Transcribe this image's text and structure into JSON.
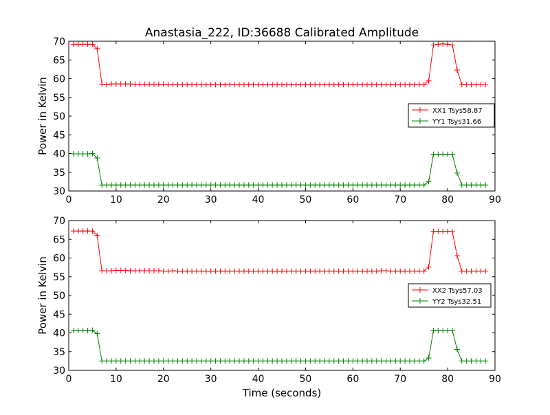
{
  "chart_data": {
    "type": "line",
    "title": "Anastasia_222, ID:36688 Calibrated Amplitude",
    "xlabel": "Time (seconds)",
    "colors": {
      "red": "#ff0000",
      "green": "#008000"
    },
    "panels": [
      {
        "ylabel": "Power in Kelvin",
        "xlim": [
          0,
          90
        ],
        "ylim": [
          30,
          70
        ],
        "xticks": [
          "0",
          "10",
          "20",
          "30",
          "40",
          "50",
          "60",
          "70",
          "80",
          "90"
        ],
        "yticks": [
          "30",
          "35",
          "40",
          "45",
          "50",
          "55",
          "60",
          "65",
          "70"
        ],
        "legend_position": "center-right",
        "series": [
          {
            "name": "XX1 Tsys58.87",
            "color": "#ff0000",
            "x": [
              1,
              2,
              3,
              4,
              5,
              6,
              7,
              8,
              9,
              10,
              11,
              12,
              13,
              14,
              15,
              16,
              17,
              18,
              19,
              20,
              21,
              22,
              23,
              24,
              25,
              26,
              27,
              28,
              29,
              30,
              31,
              32,
              33,
              34,
              35,
              36,
              37,
              38,
              39,
              40,
              41,
              42,
              43,
              44,
              45,
              46,
              47,
              48,
              49,
              50,
              51,
              52,
              53,
              54,
              55,
              56,
              57,
              58,
              59,
              60,
              61,
              62,
              63,
              64,
              65,
              66,
              67,
              68,
              69,
              70,
              71,
              72,
              73,
              74,
              75,
              76,
              77,
              78,
              79,
              80,
              81,
              82,
              83,
              84,
              85,
              86,
              87,
              88
            ],
            "y": [
              69.2,
              69.2,
              69.2,
              69.2,
              69.2,
              68,
              58.5,
              58.4,
              58.6,
              58.6,
              58.6,
              58.6,
              58.6,
              58.5,
              58.5,
              58.5,
              58.5,
              58.5,
              58.5,
              58.5,
              58.4,
              58.4,
              58.4,
              58.4,
              58.4,
              58.4,
              58.4,
              58.4,
              58.4,
              58.4,
              58.4,
              58.4,
              58.4,
              58.4,
              58.4,
              58.4,
              58.4,
              58.4,
              58.4,
              58.4,
              58.4,
              58.4,
              58.4,
              58.4,
              58.4,
              58.4,
              58.4,
              58.4,
              58.4,
              58.4,
              58.4,
              58.4,
              58.4,
              58.4,
              58.4,
              58.4,
              58.4,
              58.4,
              58.4,
              58.4,
              58.4,
              58.4,
              58.4,
              58.4,
              58.4,
              58.4,
              58.4,
              58.4,
              58.4,
              58.4,
              58.4,
              58.4,
              58.4,
              58.4,
              58.4,
              59.4,
              69,
              69.2,
              69.3,
              69.2,
              69,
              62.3,
              58.4,
              58.4,
              58.4,
              58.4,
              58.4,
              58.4
            ]
          },
          {
            "name": "YY1 Tsys31.66",
            "color": "#008000",
            "x": [
              1,
              2,
              3,
              4,
              5,
              6,
              7,
              8,
              9,
              10,
              11,
              12,
              13,
              14,
              15,
              16,
              17,
              18,
              19,
              20,
              21,
              22,
              23,
              24,
              25,
              26,
              27,
              28,
              29,
              30,
              31,
              32,
              33,
              34,
              35,
              36,
              37,
              38,
              39,
              40,
              41,
              42,
              43,
              44,
              45,
              46,
              47,
              48,
              49,
              50,
              51,
              52,
              53,
              54,
              55,
              56,
              57,
              58,
              59,
              60,
              61,
              62,
              63,
              64,
              65,
              66,
              67,
              68,
              69,
              70,
              71,
              72,
              73,
              74,
              75,
              76,
              77,
              78,
              79,
              80,
              81,
              82,
              83,
              84,
              85,
              86,
              87,
              88
            ],
            "y": [
              39.9,
              39.9,
              39.9,
              39.9,
              40,
              38.8,
              31.6,
              31.6,
              31.6,
              31.6,
              31.6,
              31.6,
              31.6,
              31.6,
              31.6,
              31.6,
              31.6,
              31.6,
              31.6,
              31.6,
              31.6,
              31.6,
              31.6,
              31.6,
              31.6,
              31.6,
              31.6,
              31.6,
              31.6,
              31.6,
              31.6,
              31.6,
              31.6,
              31.6,
              31.6,
              31.6,
              31.6,
              31.6,
              31.6,
              31.6,
              31.6,
              31.6,
              31.6,
              31.6,
              31.6,
              31.6,
              31.6,
              31.6,
              31.6,
              31.6,
              31.6,
              31.6,
              31.6,
              31.6,
              31.6,
              31.6,
              31.6,
              31.6,
              31.6,
              31.6,
              31.6,
              31.6,
              31.6,
              31.6,
              31.6,
              31.6,
              31.6,
              31.6,
              31.6,
              31.6,
              31.6,
              31.6,
              31.6,
              31.6,
              31.6,
              32.5,
              39.8,
              39.8,
              39.8,
              39.8,
              39.8,
              34.8,
              31.6,
              31.6,
              31.6,
              31.6,
              31.6,
              31.6
            ]
          }
        ]
      },
      {
        "ylabel": "Power in Kelvin",
        "xlabel": "Time (seconds)",
        "xlim": [
          0,
          90
        ],
        "ylim": [
          30,
          70
        ],
        "xticks": [
          "0",
          "10",
          "20",
          "30",
          "40",
          "50",
          "60",
          "70",
          "80",
          "90"
        ],
        "yticks": [
          "30",
          "35",
          "40",
          "45",
          "50",
          "55",
          "60",
          "65",
          "70"
        ],
        "legend_position": "center-right",
        "series": [
          {
            "name": "XX2 Tsys57.03",
            "color": "#ff0000",
            "x": [
              1,
              2,
              3,
              4,
              5,
              6,
              7,
              8,
              9,
              10,
              11,
              12,
              13,
              14,
              15,
              16,
              17,
              18,
              19,
              20,
              21,
              22,
              23,
              24,
              25,
              26,
              27,
              28,
              29,
              30,
              31,
              32,
              33,
              34,
              35,
              36,
              37,
              38,
              39,
              40,
              41,
              42,
              43,
              44,
              45,
              46,
              47,
              48,
              49,
              50,
              51,
              52,
              53,
              54,
              55,
              56,
              57,
              58,
              59,
              60,
              61,
              62,
              63,
              64,
              65,
              66,
              67,
              68,
              69,
              70,
              71,
              72,
              73,
              74,
              75,
              76,
              77,
              78,
              79,
              80,
              81,
              82,
              83,
              84,
              85,
              86,
              87,
              88
            ],
            "y": [
              67.2,
              67.2,
              67.2,
              67.2,
              67.2,
              66,
              56.6,
              56.6,
              56.6,
              56.7,
              56.7,
              56.7,
              56.6,
              56.6,
              56.6,
              56.6,
              56.6,
              56.6,
              56.6,
              56.5,
              56.5,
              56.6,
              56.5,
              56.5,
              56.5,
              56.5,
              56.5,
              56.5,
              56.5,
              56.5,
              56.5,
              56.5,
              56.5,
              56.5,
              56.5,
              56.5,
              56.5,
              56.5,
              56.5,
              56.5,
              56.5,
              56.5,
              56.5,
              56.5,
              56.5,
              56.5,
              56.5,
              56.5,
              56.5,
              56.5,
              56.5,
              56.5,
              56.5,
              56.5,
              56.5,
              56.5,
              56.5,
              56.5,
              56.5,
              56.5,
              56.5,
              56.5,
              56.5,
              56.5,
              56.5,
              56.6,
              56.6,
              56.5,
              56.5,
              56.5,
              56.5,
              56.5,
              56.5,
              56.5,
              56.5,
              57.6,
              67.1,
              67.1,
              67.1,
              67.1,
              67,
              60.6,
              56.5,
              56.5,
              56.5,
              56.5,
              56.5,
              56.5
            ]
          },
          {
            "name": "YY2 Tsys32.51",
            "color": "#008000",
            "x": [
              1,
              2,
              3,
              4,
              5,
              6,
              7,
              8,
              9,
              10,
              11,
              12,
              13,
              14,
              15,
              16,
              17,
              18,
              19,
              20,
              21,
              22,
              23,
              24,
              25,
              26,
              27,
              28,
              29,
              30,
              31,
              32,
              33,
              34,
              35,
              36,
              37,
              38,
              39,
              40,
              41,
              42,
              43,
              44,
              45,
              46,
              47,
              48,
              49,
              50,
              51,
              52,
              53,
              54,
              55,
              56,
              57,
              58,
              59,
              60,
              61,
              62,
              63,
              64,
              65,
              66,
              67,
              68,
              69,
              70,
              71,
              72,
              73,
              74,
              75,
              76,
              77,
              78,
              79,
              80,
              81,
              82,
              83,
              84,
              85,
              86,
              87,
              88
            ],
            "y": [
              40.6,
              40.6,
              40.6,
              40.6,
              40.7,
              39.8,
              32.5,
              32.5,
              32.5,
              32.5,
              32.5,
              32.5,
              32.5,
              32.5,
              32.5,
              32.5,
              32.5,
              32.5,
              32.5,
              32.5,
              32.5,
              32.5,
              32.5,
              32.5,
              32.5,
              32.5,
              32.5,
              32.5,
              32.5,
              32.5,
              32.5,
              32.5,
              32.5,
              32.5,
              32.5,
              32.5,
              32.5,
              32.5,
              32.5,
              32.5,
              32.5,
              32.5,
              32.5,
              32.5,
              32.5,
              32.5,
              32.5,
              32.5,
              32.5,
              32.5,
              32.5,
              32.5,
              32.5,
              32.5,
              32.5,
              32.5,
              32.5,
              32.5,
              32.5,
              32.5,
              32.5,
              32.5,
              32.5,
              32.5,
              32.5,
              32.5,
              32.5,
              32.5,
              32.5,
              32.5,
              32.5,
              32.5,
              32.5,
              32.5,
              32.5,
              33.3,
              40.6,
              40.6,
              40.6,
              40.6,
              40.6,
              35.6,
              32.5,
              32.5,
              32.5,
              32.5,
              32.5,
              32.5
            ]
          }
        ]
      }
    ]
  }
}
